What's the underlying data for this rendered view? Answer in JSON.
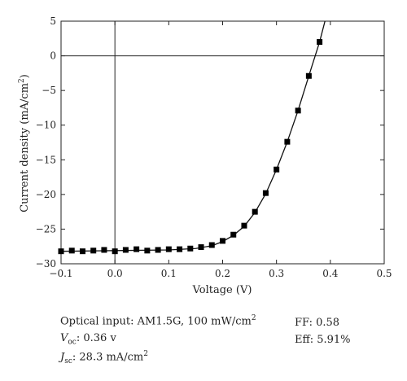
{
  "chart_data": {
    "type": "scatter",
    "xlabel": "Voltage (V)",
    "ylabel_main": "Current density (mA/cm",
    "ylabel_sup": "2",
    "ylabel_tail": ")",
    "xlim": [
      -0.1,
      0.5
    ],
    "ylim": [
      -30,
      5
    ],
    "x_ticks": [
      -0.1,
      0.0,
      0.1,
      0.2,
      0.3,
      0.4,
      0.5
    ],
    "x_tick_labels": [
      "−0.1",
      "0.0",
      "0.1",
      "0.2",
      "0.3",
      "0.4",
      "0.5"
    ],
    "y_ticks": [
      5,
      0,
      -5,
      -10,
      -15,
      -20,
      -25,
      -30
    ],
    "y_tick_labels": [
      "5",
      "0",
      "−5",
      "−10",
      "−15",
      "−20",
      "−25",
      "−30"
    ],
    "reference_lines": {
      "x": 0,
      "y": 0
    },
    "grid": false,
    "series": [
      {
        "marker": "square",
        "line": "solid",
        "color": "#000000",
        "x": [
          -0.1,
          -0.08,
          -0.06,
          -0.04,
          -0.02,
          0.0,
          0.02,
          0.04,
          0.06,
          0.08,
          0.1,
          0.12,
          0.14,
          0.16,
          0.18,
          0.2,
          0.22,
          0.24,
          0.26,
          0.28,
          0.3,
          0.32,
          0.34,
          0.36,
          0.38
        ],
        "y": [
          -28.2,
          -28.1,
          -28.2,
          -28.1,
          -28.0,
          -28.2,
          -28.0,
          -27.9,
          -28.1,
          -28.0,
          -27.9,
          -27.9,
          -27.8,
          -27.6,
          -27.3,
          -26.7,
          -25.8,
          -24.5,
          -22.5,
          -19.8,
          -16.4,
          -12.4,
          -7.9,
          -2.9,
          2.0
        ]
      }
    ],
    "curve_line": {
      "x": [
        -0.1,
        0.0,
        0.1,
        0.15,
        0.18,
        0.2,
        0.22,
        0.24,
        0.26,
        0.28,
        0.3,
        0.32,
        0.34,
        0.36,
        0.38,
        0.39
      ],
      "y": [
        -28.2,
        -28.1,
        -28.0,
        -27.8,
        -27.4,
        -26.8,
        -25.9,
        -24.6,
        -22.6,
        -19.9,
        -16.4,
        -12.4,
        -7.9,
        -2.9,
        2.0,
        5.0
      ]
    }
  },
  "notes": {
    "optical_label": "Optical input: AM1.5G, 100 mW/cm",
    "optical_sup": "2",
    "voc_v": "V",
    "voc_sub": "oc",
    "voc_value": ": 0.36 v",
    "jsc_j": "J",
    "jsc_sub": "sc",
    "jsc_value": ": 28.3 mA/cm",
    "jsc_sup": "2",
    "ff": "FF: 0.58",
    "eff": "Eff: 5.91%"
  }
}
